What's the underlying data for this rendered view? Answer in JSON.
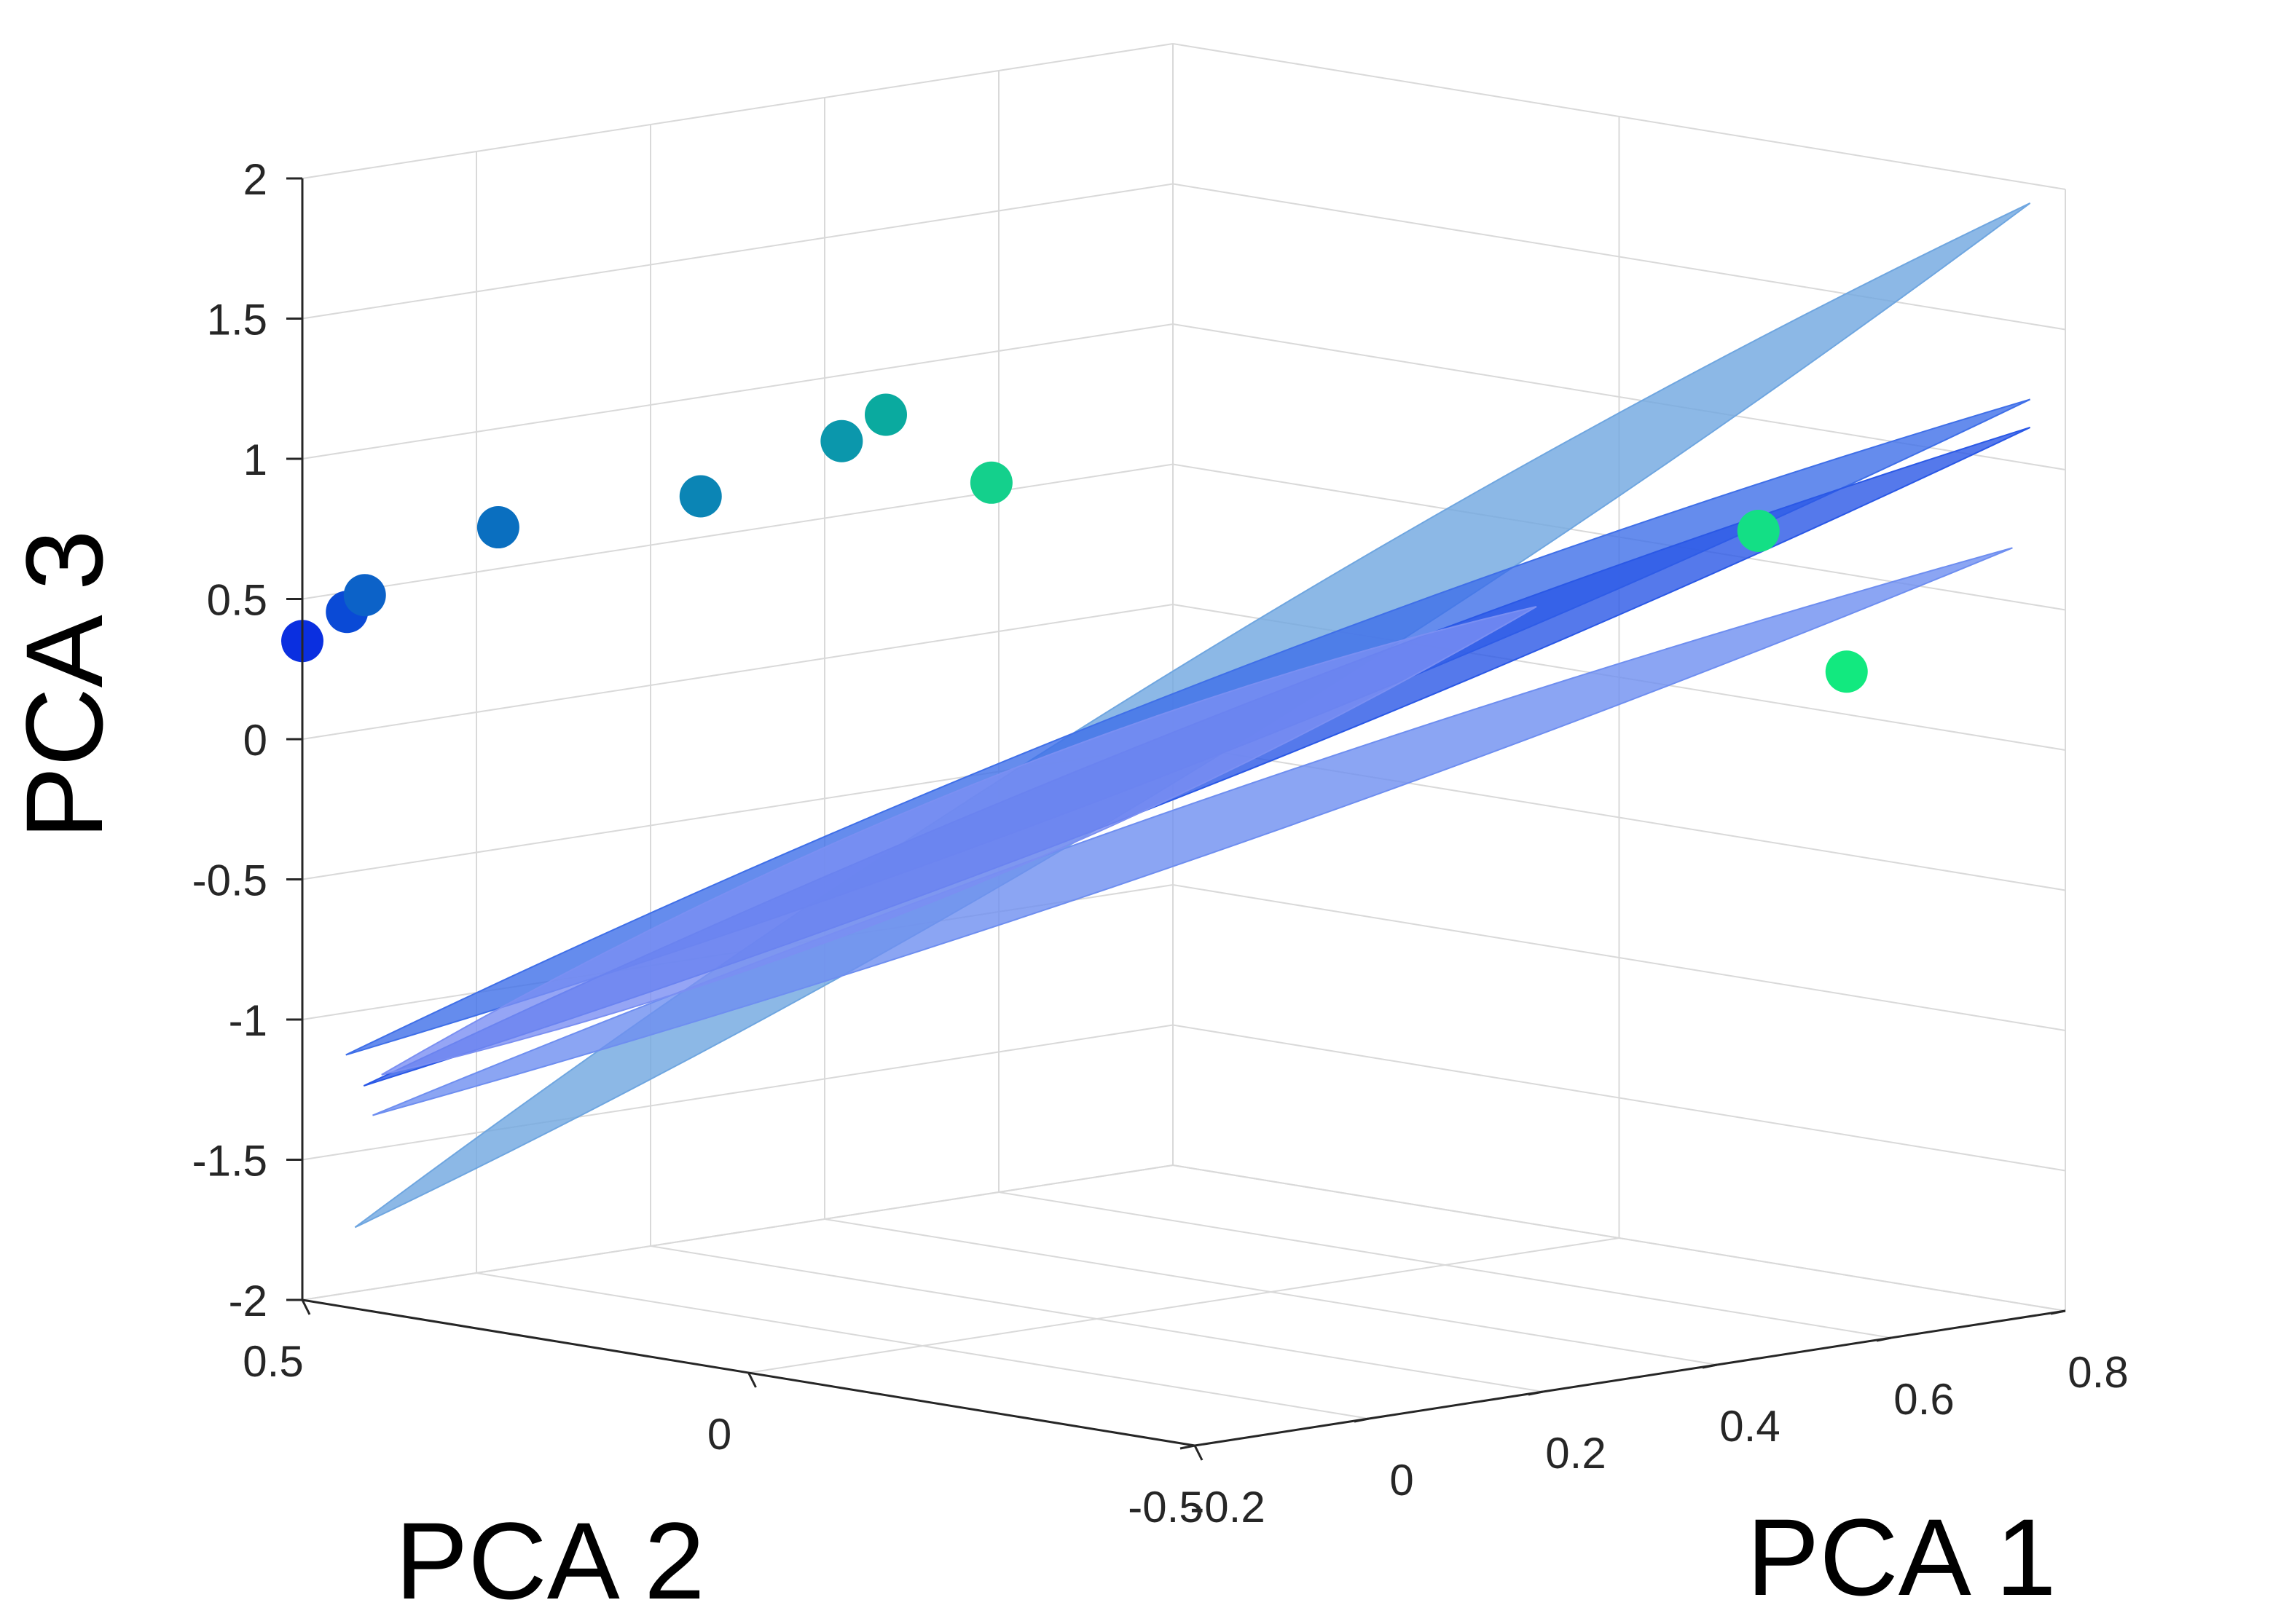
{
  "chart_data": {
    "type": "scatter3d",
    "title": "",
    "xlabel": "PCA 1",
    "ylabel": "PCA 2",
    "zlabel": "PCA 3",
    "xlim": [
      -0.2,
      0.8
    ],
    "ylim": [
      -0.5,
      0.5
    ],
    "zlim": [
      -2,
      2
    ],
    "xticks": [
      -0.2,
      0,
      0.2,
      0.4,
      0.6,
      0.8
    ],
    "xtick_labels": [
      "-0.2",
      "0",
      "0.2",
      "0.4",
      "0.6",
      "0.8"
    ],
    "yticks": [
      0.5,
      0,
      -0.5
    ],
    "ytick_labels": [
      "0.5",
      "0",
      "-0.5"
    ],
    "zticks": [
      2,
      1.5,
      1,
      0.5,
      0,
      -0.5,
      -1,
      -1.5,
      -2
    ],
    "ztick_labels": [
      "2",
      "1.5",
      "1",
      "0.5",
      "0",
      "-0.5",
      "-1",
      "-1.5",
      "-2"
    ],
    "grid": true,
    "points": [
      {
        "x": -0.2,
        "y": 0.5,
        "z": 0.35,
        "color": "#0a2fe0"
      },
      {
        "x": -0.2,
        "y": 0.45,
        "z": 0.48,
        "color": "#0a4ad6"
      },
      {
        "x": -0.2,
        "y": 0.43,
        "z": 0.55,
        "color": "#0c62c8"
      },
      {
        "x": -0.18,
        "y": 0.3,
        "z": 0.85,
        "color": "#0a6fc0"
      },
      {
        "x": -0.05,
        "y": 0.2,
        "z": 0.95,
        "color": "#0b85b5"
      },
      {
        "x": 0.03,
        "y": 0.12,
        "z": 1.15,
        "color": "#0b97ac"
      },
      {
        "x": 0.05,
        "y": 0.09,
        "z": 1.25,
        "color": "#0aaa9f"
      },
      {
        "x": 0.12,
        "y": 0.04,
        "z": 1.0,
        "color": "#14d08c"
      },
      {
        "x": 0.55,
        "y": -0.4,
        "z": 0.85,
        "color": "#13df85"
      },
      {
        "x": 0.6,
        "y": -0.45,
        "z": 0.35,
        "color": "#12e97f"
      }
    ],
    "surfaces": [
      {
        "name": "ribbon-1",
        "color": "#6fa6e0"
      },
      {
        "name": "ribbon-2",
        "color": "#3f6fe8"
      },
      {
        "name": "ribbon-3",
        "color": "#2a58e6"
      },
      {
        "name": "ribbon-4",
        "color": "#6e8ef0"
      },
      {
        "name": "ribbon-5",
        "color": "#7a8ff2"
      }
    ]
  }
}
